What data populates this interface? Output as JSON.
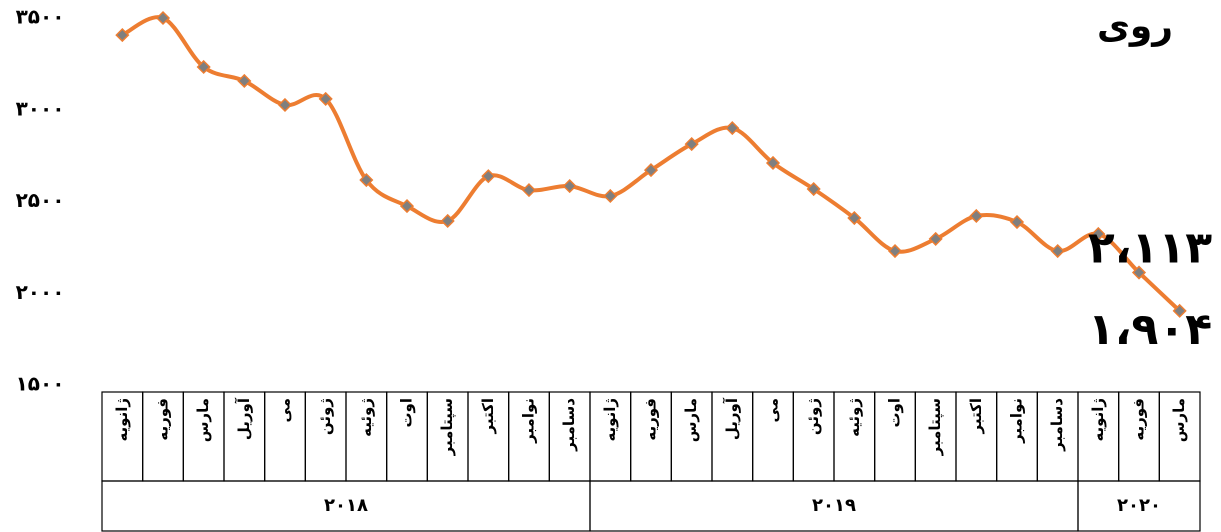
{
  "chart_data": {
    "type": "line",
    "title": "روی",
    "categories": [
      "ژانویه",
      "فوریه",
      "مارس",
      "آوریل",
      "می",
      "ژوئن",
      "ژوئیه",
      "اوت",
      "سپتامبر",
      "اکتبر",
      "نوامبر",
      "دسامبر",
      "ژانویه",
      "فوریه",
      "مارس",
      "آوریل",
      "می",
      "ژوئن",
      "ژوئیه",
      "اوت",
      "سپتامبر",
      "اکتبر",
      "نوامبر",
      "دسامبر",
      "ژانویه",
      "فوریه",
      "مارس"
    ],
    "x_groups": [
      {
        "label": "۲۰۱۸",
        "span": 12
      },
      {
        "label": "۲۰۱۹",
        "span": 12
      },
      {
        "label": "۲۰۲۰",
        "span": 3
      }
    ],
    "series": [
      {
        "name": "روی",
        "color": "#ed7d31",
        "marker_color": "#7f7f7f",
        "values": [
          3407,
          3500,
          3233,
          3157,
          3026,
          3059,
          2617,
          2475,
          2394,
          2638,
          2562,
          2584,
          2530,
          2671,
          2813,
          2900,
          2710,
          2568,
          2410,
          2230,
          2296,
          2421,
          2388,
          2230,
          2323,
          2113,
          1904
        ],
        "value_labels": [
          null,
          null,
          null,
          null,
          null,
          null,
          null,
          null,
          null,
          null,
          null,
          null,
          null,
          null,
          null,
          null,
          null,
          null,
          null,
          null,
          null,
          null,
          null,
          null,
          null,
          "۲،۱۱۳",
          "۱،۹۰۴"
        ]
      }
    ],
    "ylim": [
      1500,
      3500
    ],
    "yticks": [
      {
        "value": 1500,
        "label": "۱۵۰۰"
      },
      {
        "value": 2000,
        "label": "۲۰۰۰"
      },
      {
        "value": 2500,
        "label": "۲۵۰۰"
      },
      {
        "value": 3000,
        "label": "۳۰۰۰"
      },
      {
        "value": 3500,
        "label": "۳۵۰۰"
      }
    ],
    "grid": false
  }
}
